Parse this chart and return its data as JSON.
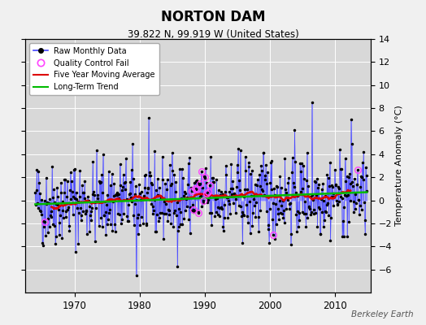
{
  "title": "NORTON DAM",
  "subtitle": "39.822 N, 99.919 W (United States)",
  "ylabel": "Temperature Anomaly (°C)",
  "credit": "Berkeley Earth",
  "xlim": [
    1962.5,
    2015.5
  ],
  "ylim": [
    -8,
    14
  ],
  "yticks": [
    -6,
    -4,
    -2,
    0,
    2,
    4,
    6,
    8,
    10,
    12,
    14
  ],
  "xticks": [
    1970,
    1980,
    1990,
    2000,
    2010
  ],
  "bg_color": "#f0f0f0",
  "plot_bg_color": "#d8d8d8",
  "raw_line_color": "#4444ff",
  "raw_dot_color": "#000000",
  "bar_color": "#8888ff",
  "qc_color": "#ff44ff",
  "moving_avg_color": "#dd0000",
  "trend_color": "#00bb00",
  "seed": 17,
  "n_months": 612,
  "start_year": 1964.0
}
